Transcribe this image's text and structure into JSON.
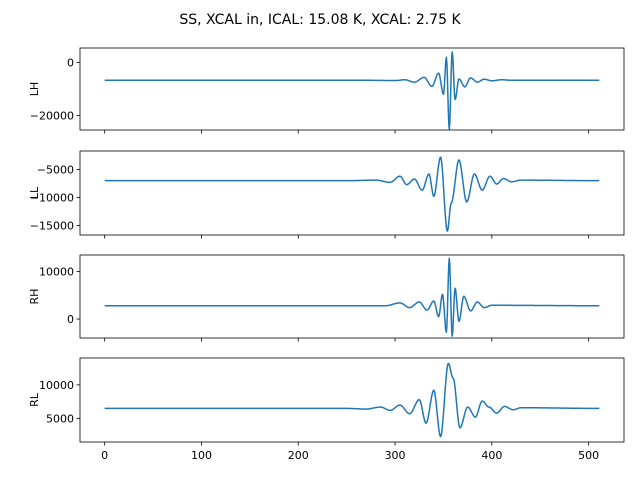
{
  "chart_data": {
    "type": "line",
    "title": "SS, XCAL in, ICAL: 15.08 K, XCAL: 2.75 K",
    "line_color": "#1f77b4",
    "shared_xlim": [
      -25.5,
      536.5
    ],
    "x_ticks": [
      0,
      100,
      200,
      300,
      400,
      500
    ],
    "x_tick_labels": [
      "0",
      "100",
      "200",
      "300",
      "400",
      "500"
    ],
    "x_range_points": [
      0,
      511
    ],
    "grid": false,
    "subplots": [
      {
        "ylabel": "LH",
        "ylim": [
          -25500,
          5500
        ],
        "y_ticks": [
          0,
          -20000
        ],
        "y_tick_labels": [
          "0",
          "−20000"
        ],
        "baseline": -6700,
        "dip_min": -25200,
        "peak_max": 4000,
        "series": [
          {
            "x": [
              0,
              270,
              300,
              310,
              320,
              330,
              338,
              345,
              350,
              353,
              356,
              359,
              362,
              366,
              372,
              378,
              385,
              392,
              400,
              410,
              420,
              511
            ],
            "y": [
              -6700,
              -6700,
              -6800,
              -6500,
              -7400,
              -5600,
              -9000,
              -4000,
              -12000,
              2000,
              -25200,
              4000,
              -14000,
              -6200,
              -9200,
              -5800,
              -7400,
              -6300,
              -6900,
              -6500,
              -6700,
              -6700
            ]
          }
        ]
      },
      {
        "ylabel": "LL",
        "ylim": [
          -16700,
          -1700
        ],
        "y_ticks": [
          -5000,
          -10000,
          -15000
        ],
        "y_tick_labels": [
          "−5000",
          "−10000",
          "−15000"
        ],
        "baseline": -7000,
        "dip_min": -16000,
        "peak_max": -2800,
        "series": [
          {
            "x": [
              0,
              250,
              280,
              295,
              305,
              312,
              320,
              328,
              335,
              340,
              347,
              354,
              358,
              366,
              374,
              382,
              390,
              398,
              405,
              412,
              420,
              430,
              511
            ],
            "y": [
              -7000,
              -7000,
              -6900,
              -7300,
              -6200,
              -7700,
              -6700,
              -8700,
              -5800,
              -9800,
              -2800,
              -16000,
              -11000,
              -3300,
              -10800,
              -5800,
              -8700,
              -6200,
              -7600,
              -6600,
              -7200,
              -6900,
              -7000
            ]
          }
        ]
      },
      {
        "ylabel": "RH",
        "ylim": [
          -4000,
          13500
        ],
        "y_ticks": [
          10000,
          0
        ],
        "y_tick_labels": [
          "10000",
          "0"
        ],
        "baseline": 2800,
        "dip_min": -3600,
        "peak_max": 12800,
        "series": [
          {
            "x": [
              0,
              290,
              305,
              315,
              325,
              333,
              340,
              345,
              349,
              353,
              356,
              359,
              362,
              366,
              371,
              378,
              385,
              392,
              400,
              511
            ],
            "y": [
              2800,
              2800,
              3400,
              2400,
              3600,
              1900,
              3800,
              500,
              5200,
              -2800,
              12800,
              -3600,
              6500,
              -500,
              4800,
              1700,
              3600,
              2400,
              2900,
              2800
            ]
          }
        ]
      },
      {
        "ylabel": "RL",
        "ylim": [
          1500,
          14000
        ],
        "y_ticks": [
          10000,
          5000
        ],
        "y_tick_labels": [
          "10000",
          "5000"
        ],
        "baseline": 6500,
        "dip_min": 2300,
        "peak_max": 13200,
        "series": [
          {
            "x": [
              0,
              250,
              270,
              285,
              295,
              305,
              315,
              325,
              332,
              340,
              347,
              355,
              360,
              367,
              375,
              383,
              390,
              397,
              405,
              413,
              422,
              430,
              511
            ],
            "y": [
              6500,
              6500,
              6400,
              6700,
              6200,
              7000,
              5700,
              7800,
              4300,
              9200,
              2300,
              13200,
              11000,
              3600,
              6700,
              5200,
              7600,
              6700,
              5800,
              6800,
              6300,
              6600,
              6500
            ]
          }
        ]
      }
    ]
  }
}
